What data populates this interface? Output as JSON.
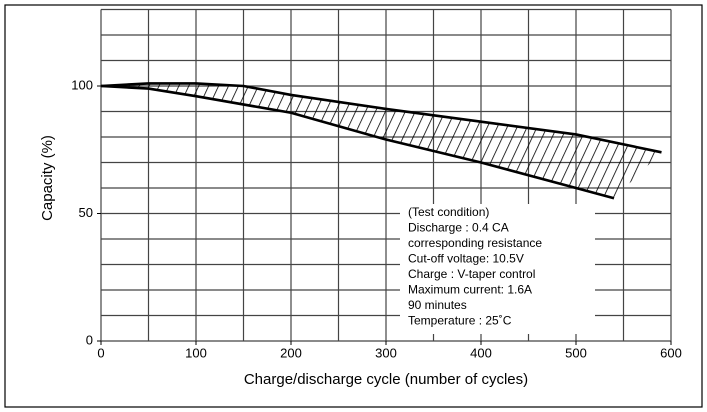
{
  "chart_data": {
    "type": "band",
    "x_label": "Charge/discharge cycle (number of cycles)",
    "y_label": "Capacity (%)",
    "xlim": [
      0,
      600
    ],
    "xticks": [
      0,
      100,
      200,
      300,
      400,
      500,
      600
    ],
    "ylim": [
      0,
      130
    ],
    "yticks": [
      0,
      50,
      100
    ],
    "grid": true,
    "xgrid": [
      0,
      50,
      100,
      150,
      200,
      250,
      300,
      350,
      400,
      450,
      500,
      550,
      600
    ],
    "ygrid": [
      0,
      10,
      20,
      30,
      40,
      50,
      60,
      70,
      80,
      90,
      100,
      110,
      120,
      130
    ],
    "color": "#000000",
    "series": [
      {
        "name": "upper",
        "x": [
          0,
          50,
          100,
          150,
          200,
          300,
          400,
          500,
          590
        ],
        "values": [
          100,
          101,
          101,
          100,
          96.5,
          91,
          86,
          81,
          74
        ]
      },
      {
        "name": "lower",
        "x": [
          0,
          50,
          100,
          200,
          300,
          400,
          500,
          540
        ],
        "values": [
          100,
          99,
          96,
          89.5,
          79,
          70,
          60,
          56
        ]
      }
    ],
    "annotation": [
      "(Test condition)",
      "Discharge : 0.4 CA",
      "corresponding resistance",
      "Cut-off voltage: 10.5V",
      "Charge : V-taper control",
      "Maximum current: 1.6A",
      "90 minutes",
      "Temperature : 25˚C"
    ]
  }
}
